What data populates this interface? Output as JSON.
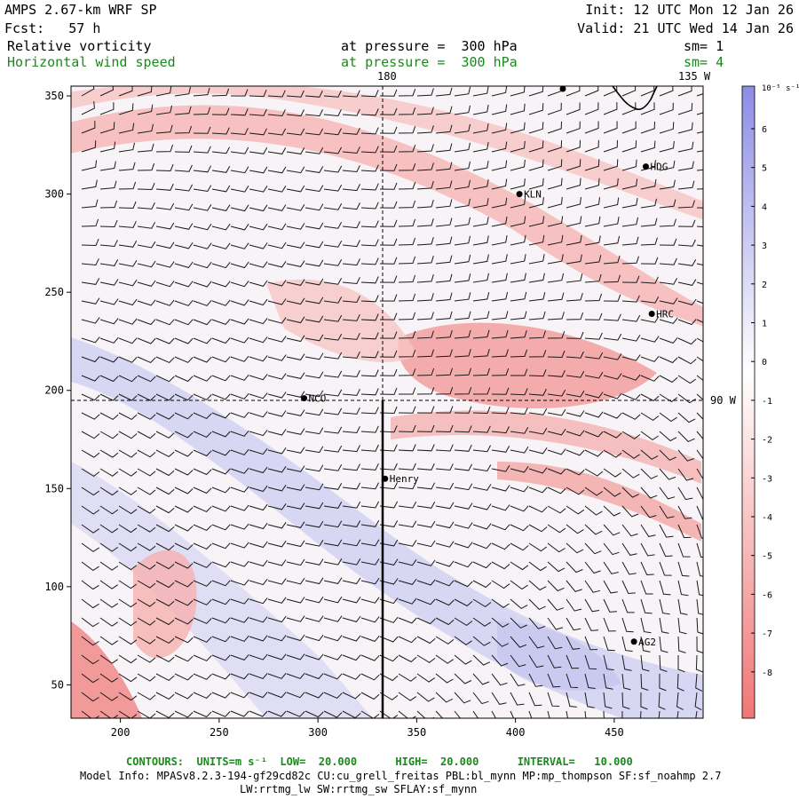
{
  "header": {
    "model": "AMPS 2.67-km WRF SP",
    "forecast": "Fcst:   57 h",
    "init": "Init: 12 UTC Mon 12 Jan 26",
    "valid": "Valid: 21 UTC Wed 14 Jan 26",
    "field1": {
      "name": "Relative vorticity",
      "level": "at pressure =  300 hPa",
      "smooth": "sm= 1"
    },
    "field2": {
      "name": "Horizontal wind speed",
      "level": "at pressure =  300 hPa",
      "smooth": "sm= 4"
    }
  },
  "lon_labels": {
    "top": "180",
    "top_right": "135 W",
    "right": "90 W"
  },
  "x_axis": {
    "ticks": [
      200,
      250,
      300,
      350,
      400,
      450
    ],
    "range": [
      175,
      495
    ]
  },
  "y_axis": {
    "ticks": [
      50,
      100,
      150,
      200,
      250,
      300,
      350
    ],
    "range": [
      33,
      355
    ]
  },
  "stations": [
    {
      "name": "HDG",
      "x": 466,
      "y": 314
    },
    {
      "name": "KLN",
      "x": 402,
      "y": 300
    },
    {
      "name": "HRC",
      "x": 469,
      "y": 239
    },
    {
      "name": "NCO",
      "x": 293,
      "y": 196
    },
    {
      "name": "Henry",
      "x": 334,
      "y": 155
    },
    {
      "name": "AG2",
      "x": 460,
      "y": 72
    }
  ],
  "colorbar": {
    "units": "10⁻⁵ s⁻¹",
    "labels": [
      "6",
      "5",
      "4",
      "3",
      "2",
      "1",
      "0",
      "-1",
      "-2",
      "-3",
      "-4",
      "-5",
      "-6",
      "-7",
      "-8"
    ]
  },
  "footer": {
    "contours": "CONTOURS:  UNITS=m s⁻¹  LOW=  20.000      HIGH=  20.000      INTERVAL=   10.000",
    "model_info": "Model Info: MPASv8.2.3-194-gf29cd82c CU:cu_grell_freitas PBL:bl_mynn MP:mp_thompson SF:sf_noahmp 2.7",
    "model_info2": "LW:rrtmg_lw SW:rrtmg_sw SFLAY:sf_mynn"
  },
  "colors": {
    "pos": "#8a8ae6",
    "neg": "#f07676",
    "text_green": "#1a8a1a"
  }
}
